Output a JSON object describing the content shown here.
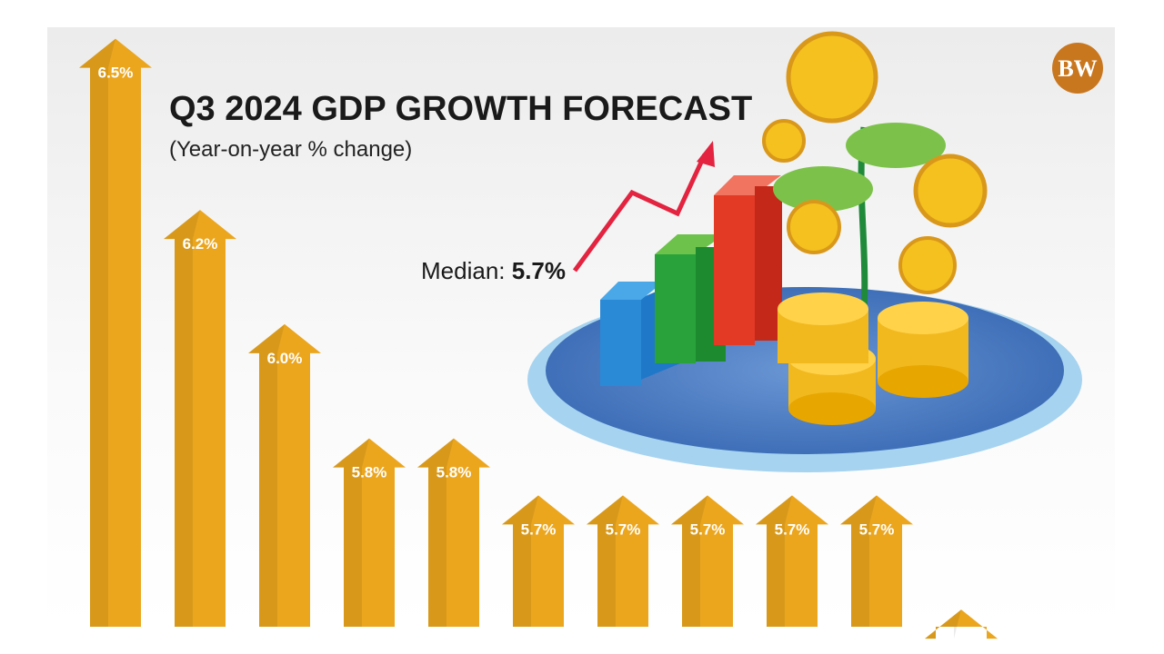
{
  "chart_data": {
    "type": "arrow-bar",
    "title": "Q3 2024 GDP GROWTH FORECAST",
    "subtitle": "(Year-on-year % change)",
    "annotation": {
      "label": "Median:",
      "value": "5.7%"
    },
    "logo": "BW",
    "values": [
      6.5,
      6.2,
      6.0,
      5.8,
      5.8,
      5.7,
      5.7,
      5.7,
      5.7,
      5.7,
      5.5
    ],
    "value_labels": [
      "6.5%",
      "6.2%",
      "6.0%",
      "5.8%",
      "5.8%",
      "5.7%",
      "5.7%",
      "5.7%",
      "5.7%",
      "5.7%",
      null
    ],
    "color": "#eba61e",
    "ylim": [
      5.47,
      6.52
    ]
  }
}
